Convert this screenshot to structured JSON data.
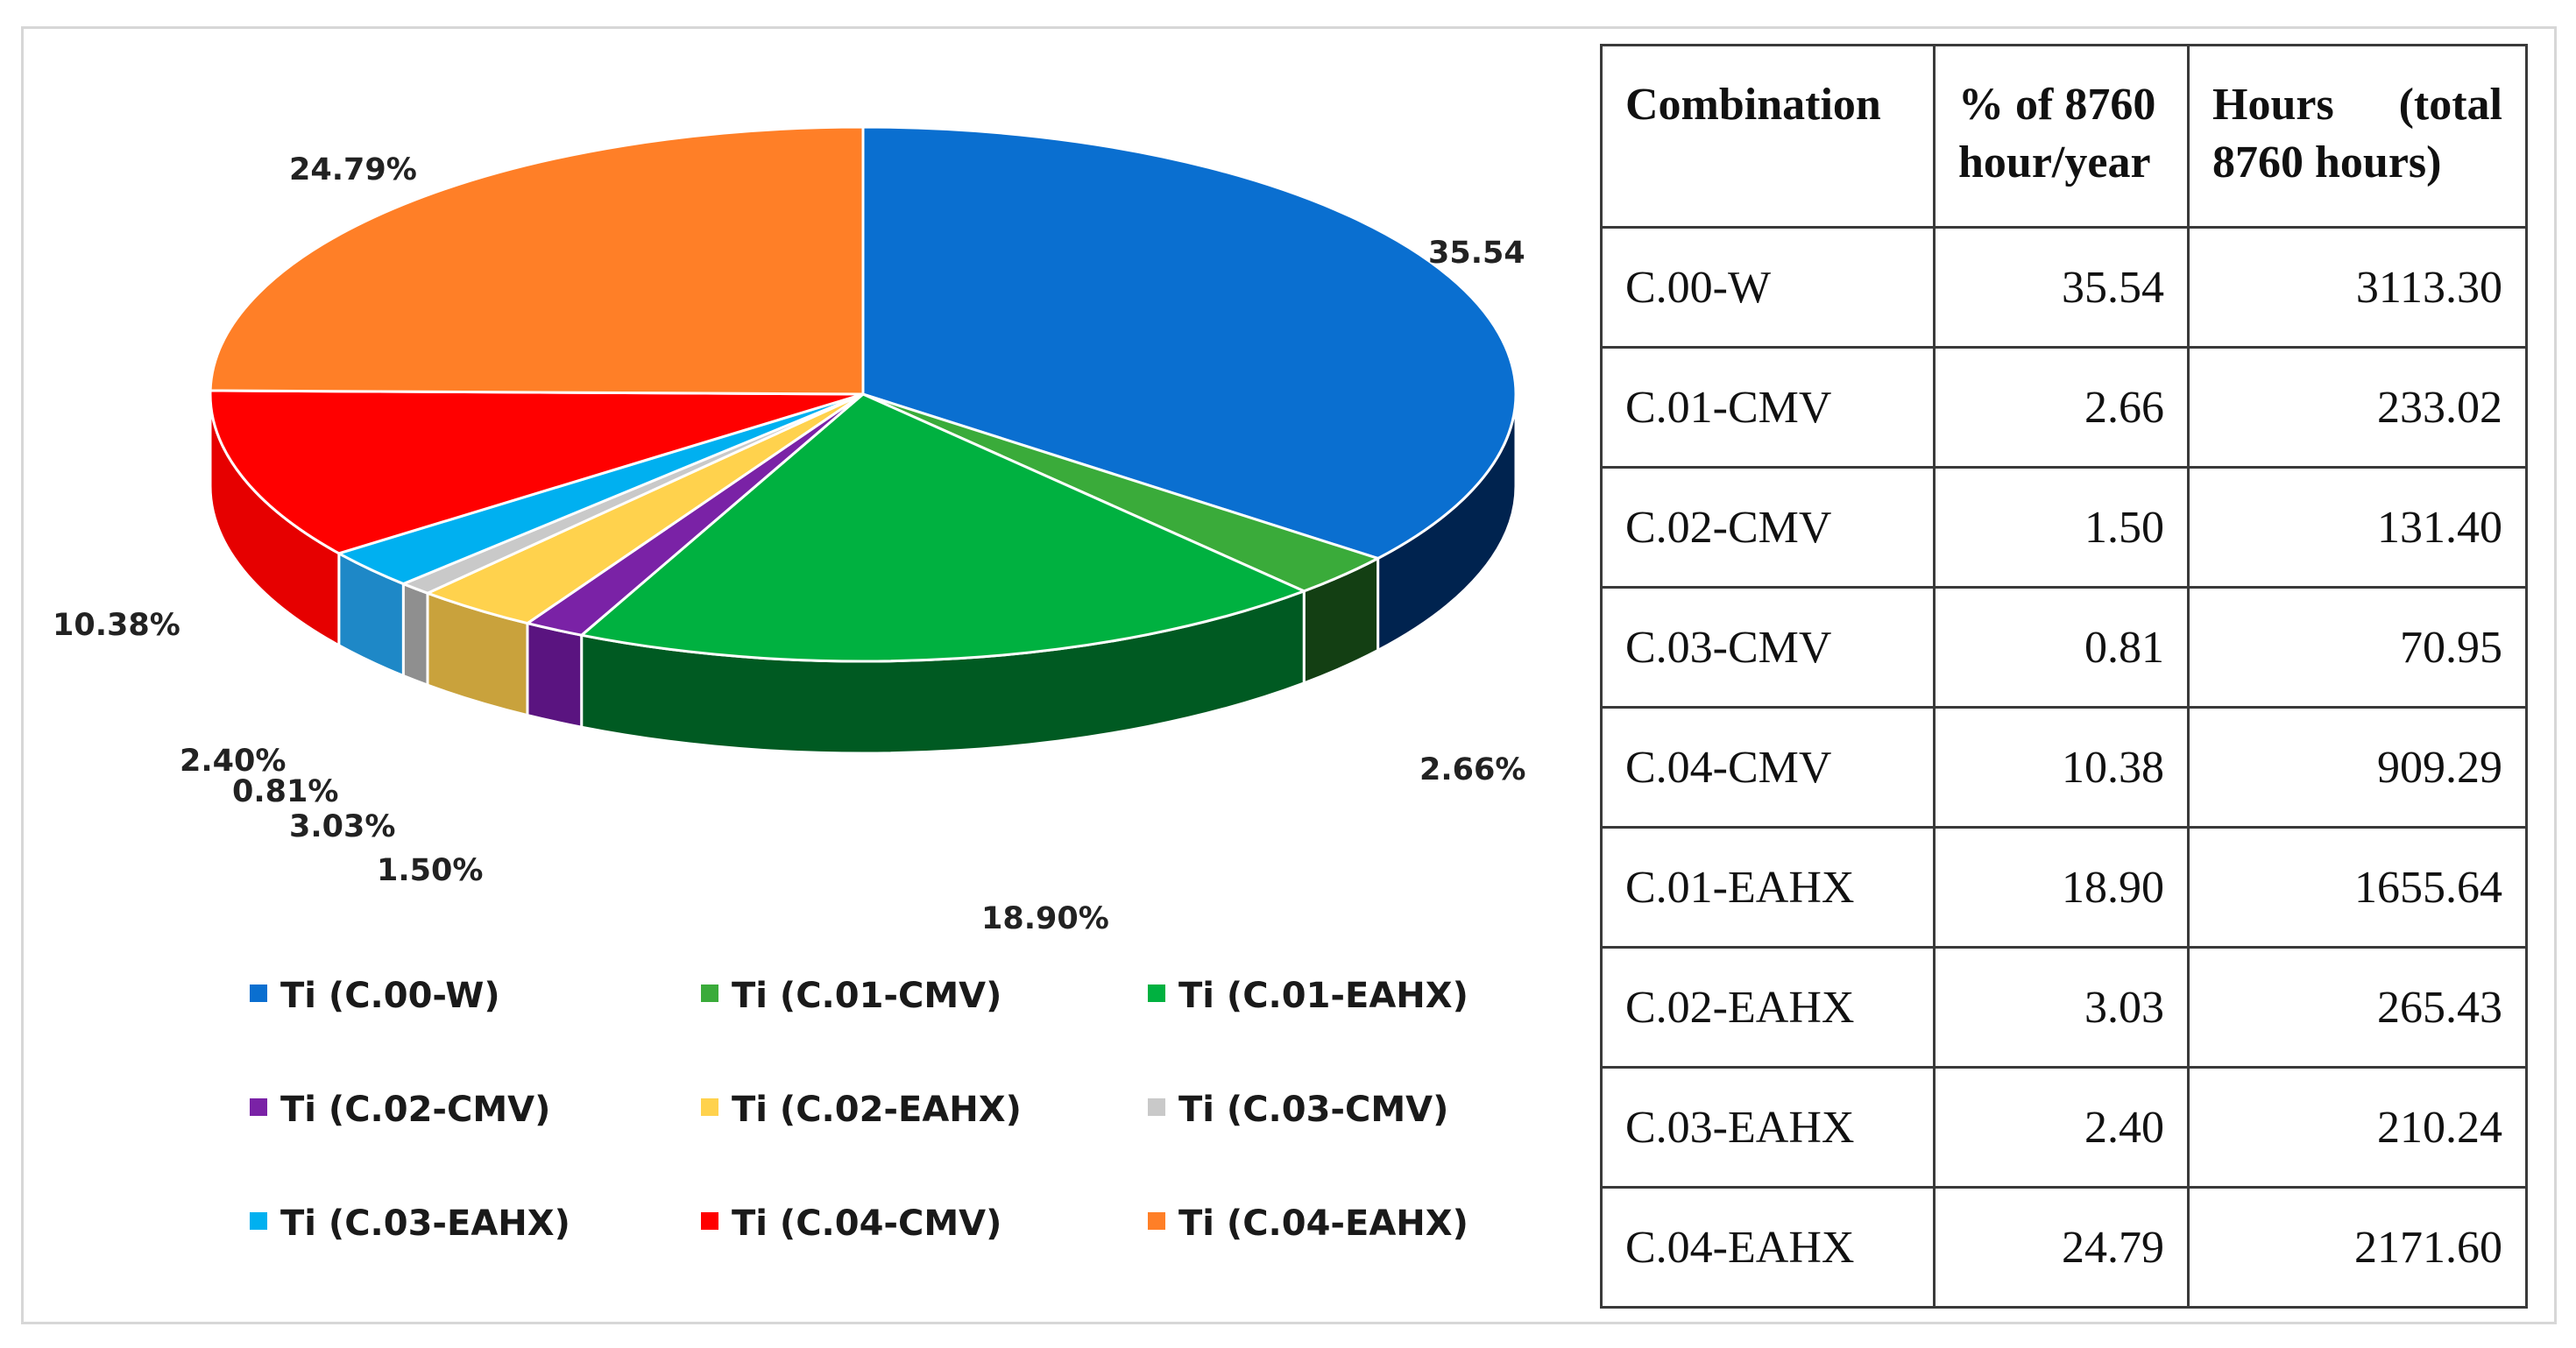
{
  "chart_data": {
    "type": "pie",
    "series": [
      {
        "name": "Ti (C.00-W)",
        "value": 35.54,
        "label": "35.54",
        "color": "#0a6fd0",
        "side_color": "#00234f"
      },
      {
        "name": "Ti (C.01-CMV)",
        "value": 2.66,
        "label": "2.66%",
        "color": "#3aab3a",
        "side_color": "#133f13"
      },
      {
        "name": "Ti (C.01-EAHX)",
        "value": 18.9,
        "label": "18.90%",
        "color": "#00b140",
        "side_color": "#005a22"
      },
      {
        "name": "Ti (C.02-CMV)",
        "value": 1.5,
        "label": "1.50%",
        "color": "#7a22a6",
        "side_color": "#5a1480"
      },
      {
        "name": "Ti (C.02-EAHX)",
        "value": 3.03,
        "label": "3.03%",
        "color": "#ffd24d",
        "side_color": "#c9a23c"
      },
      {
        "name": "Ti (C.03-CMV)",
        "value": 0.81,
        "label": "0.81%",
        "color": "#c9c9c9",
        "side_color": "#8f8f8f"
      },
      {
        "name": "Ti (C.03-EAHX)",
        "value": 2.4,
        "label": "2.40%",
        "color": "#00b0f0",
        "side_color": "#1e88c7"
      },
      {
        "name": "Ti (C.04-CMV)",
        "value": 10.38,
        "label": "10.38%",
        "color": "#ff0000",
        "side_color": "#e60000"
      },
      {
        "name": "Ti (C.04-EAHX)",
        "value": 24.79,
        "label": "24.79%",
        "color": "#ff7f27",
        "side_color": "#c45a10"
      }
    ],
    "legend_position": "bottom"
  },
  "table": {
    "headers": [
      "Combination",
      "% of 8760 hour/year",
      "Hours (total 8760 hours)"
    ],
    "rows": [
      [
        "C.00-W",
        "35.54",
        "3113.30"
      ],
      [
        "C.01-CMV",
        "2.66",
        "233.02"
      ],
      [
        "C.02-CMV",
        "1.50",
        "131.40"
      ],
      [
        "C.03-CMV",
        "0.81",
        "70.95"
      ],
      [
        "C.04-CMV",
        "10.38",
        "909.29"
      ],
      [
        "C.01-EAHX",
        "18.90",
        "1655.64"
      ],
      [
        "C.02-EAHX",
        "3.03",
        "265.43"
      ],
      [
        "C.03-EAHX",
        "2.40",
        "210.24"
      ],
      [
        "C.04-EAHX",
        "24.79",
        "2171.60"
      ]
    ]
  }
}
